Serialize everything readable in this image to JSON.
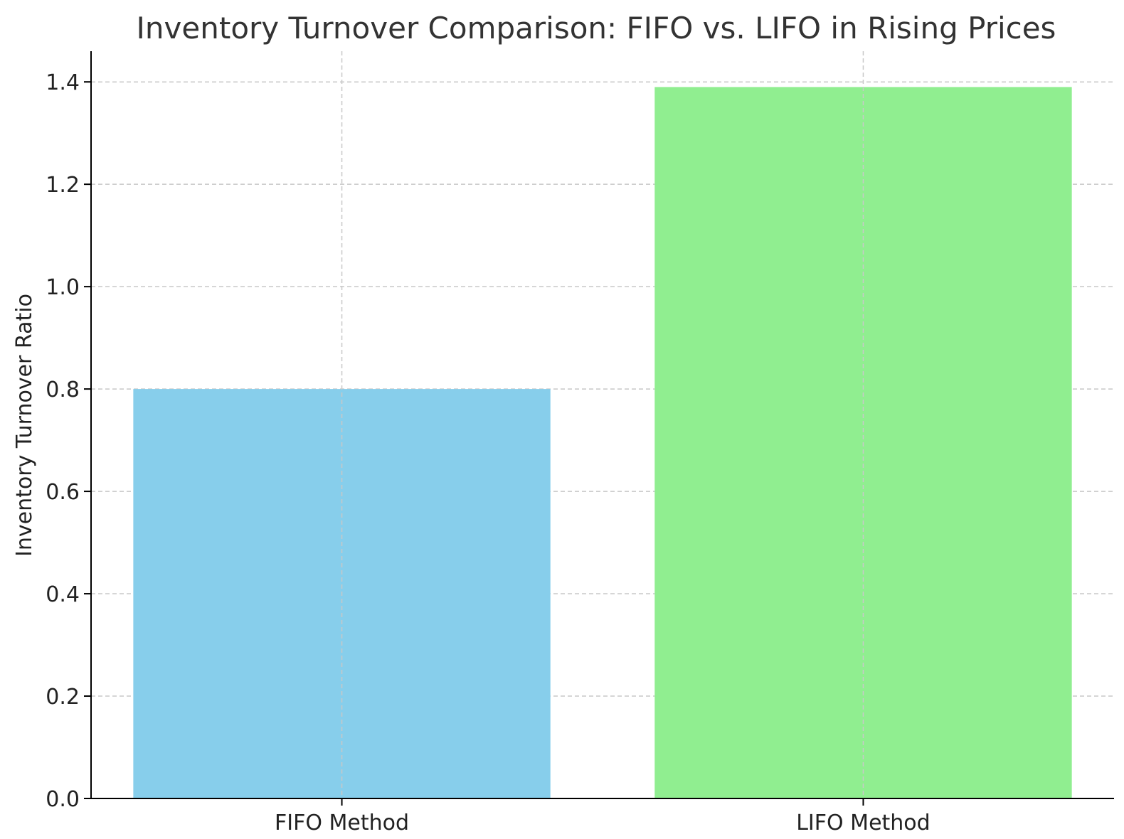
{
  "chart_data": {
    "type": "bar",
    "title": "Inventory Turnover Comparison: FIFO vs. LIFO in Rising Prices",
    "xlabel": "",
    "ylabel": "Inventory Turnover Ratio",
    "categories": [
      "FIFO Method",
      "LIFO Method"
    ],
    "values": [
      0.8,
      1.39
    ],
    "colors": [
      "#87CEEB",
      "#90EE90"
    ],
    "ylim": [
      0,
      1.46
    ],
    "yticks": [
      "0.0",
      "0.2",
      "0.4",
      "0.6",
      "0.8",
      "1.0",
      "1.2",
      "1.4"
    ],
    "grid": true,
    "legend": "none"
  }
}
